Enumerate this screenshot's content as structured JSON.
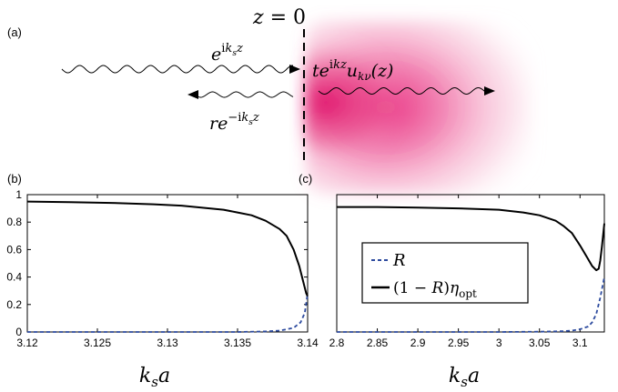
{
  "schematic": {
    "panel_label": "(a)",
    "interface_label": "z = 0",
    "incident_label": "e^{ik_s z}",
    "reflected_label": "re^{-ik_s z}",
    "transmitted_label": "te^{ikz}u_{kν}(z)",
    "medium_color": "#e6156e"
  },
  "chart_data": [
    {
      "type": "line",
      "panel_label": "(b)",
      "xlabel": "k_s a",
      "ylabel": "",
      "xlim": [
        3.12,
        3.14
      ],
      "ylim": [
        0,
        1
      ],
      "xticks": [
        3.12,
        3.125,
        3.13,
        3.135,
        3.14
      ],
      "xtick_labels": [
        "3.12",
        "3.125",
        "3.13",
        "3.135",
        "3.14"
      ],
      "yticks": [
        0,
        0.2,
        0.4,
        0.6,
        0.8,
        1
      ],
      "ytick_labels": [
        "0",
        "0.2",
        "0.4",
        "0.6",
        "0.8",
        "1"
      ],
      "grid": false,
      "series": [
        {
          "id": "R",
          "style": "dashed",
          "color": "#2c4a9e",
          "x": [
            3.12,
            3.13,
            3.135,
            3.137,
            3.138,
            3.139,
            3.1395,
            3.1398,
            3.14
          ],
          "y": [
            0,
            0,
            0,
            0.004,
            0.01,
            0.03,
            0.07,
            0.14,
            0.28
          ]
        },
        {
          "id": "T_eta",
          "style": "solid",
          "color": "#000000",
          "x": [
            3.12,
            3.123,
            3.126,
            3.129,
            3.131,
            3.133,
            3.134,
            3.135,
            3.136,
            3.137,
            3.138,
            3.1385,
            3.139,
            3.1394,
            3.1397,
            3.1399,
            3.14
          ],
          "y": [
            0.95,
            0.945,
            0.94,
            0.93,
            0.92,
            0.9,
            0.89,
            0.87,
            0.85,
            0.81,
            0.75,
            0.7,
            0.6,
            0.48,
            0.36,
            0.28,
            0.26
          ]
        }
      ]
    },
    {
      "type": "line",
      "panel_label": "(c)",
      "xlabel": "k_s a",
      "ylabel": "",
      "xlim": [
        2.8,
        3.13
      ],
      "ylim": [
        0,
        1
      ],
      "xticks": [
        2.8,
        2.85,
        2.9,
        2.95,
        3.0,
        3.05,
        3.1
      ],
      "xtick_labels": [
        "2.8",
        "2.85",
        "2.9",
        "2.95",
        "3",
        "3.05",
        "3.1"
      ],
      "grid": false,
      "legend": {
        "position": "center-right",
        "entries": [
          {
            "series": "R",
            "label": "R"
          },
          {
            "series": "T_eta",
            "label": "(1 − R)η_opt"
          }
        ]
      },
      "series": [
        {
          "id": "R",
          "style": "dashed",
          "color": "#2c4a9e",
          "x": [
            2.8,
            3.0,
            3.05,
            3.08,
            3.09,
            3.1,
            3.11,
            3.115,
            3.12,
            3.125,
            3.13
          ],
          "y": [
            0,
            0,
            0.002,
            0.006,
            0.01,
            0.02,
            0.04,
            0.07,
            0.13,
            0.25,
            0.4
          ]
        },
        {
          "id": "T_eta",
          "style": "solid",
          "color": "#000000",
          "x": [
            2.8,
            2.85,
            2.9,
            2.95,
            3.0,
            3.03,
            3.05,
            3.07,
            3.08,
            3.09,
            3.1,
            3.108,
            3.115,
            3.12,
            3.123,
            3.125,
            3.127,
            3.13
          ],
          "y": [
            0.91,
            0.91,
            0.905,
            0.9,
            0.89,
            0.87,
            0.85,
            0.81,
            0.77,
            0.72,
            0.63,
            0.55,
            0.48,
            0.45,
            0.46,
            0.52,
            0.62,
            0.79
          ]
        }
      ]
    }
  ]
}
